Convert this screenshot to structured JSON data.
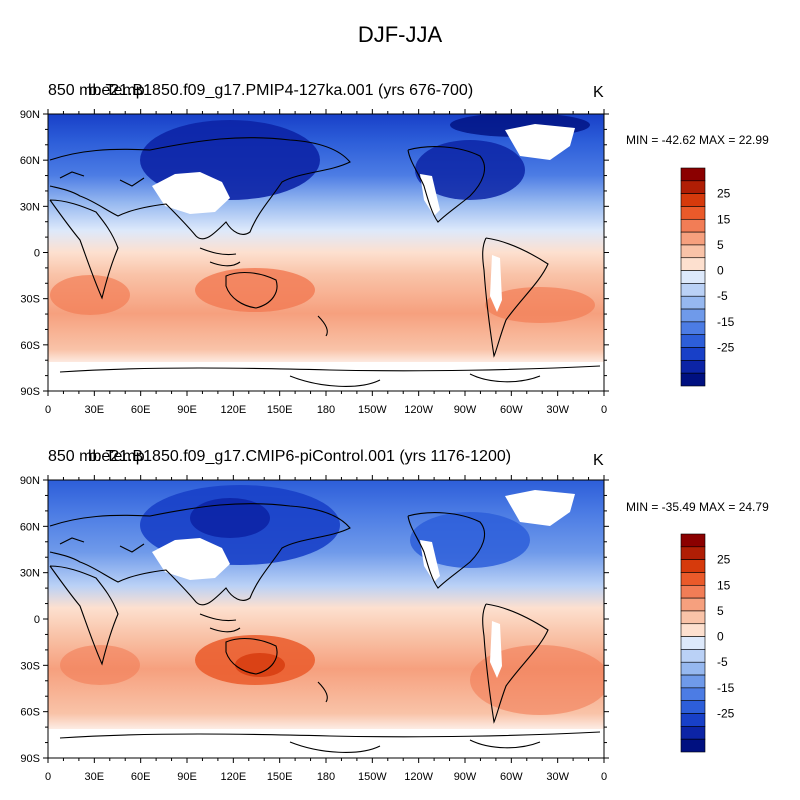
{
  "figure_title": "DJF-JJA",
  "panels": [
    {
      "variable": "850 mb Temp",
      "case": "b.e21.B1850.f09_g17.PMIP4-127ka.001 (yrs 676-700)",
      "units": "K",
      "minmax": "MIN = -42.62 MAX =  22.99",
      "min": -42.62,
      "max": 22.99
    },
    {
      "variable": "850 mb Temp",
      "case": "b.e21.B1850.f09_g17.CMIP6-piControl.001 (yrs 1176-1200)",
      "units": "K",
      "minmax": "MIN = -35.49 MAX =  24.79",
      "min": -35.49,
      "max": 24.79
    }
  ],
  "axes": {
    "lat_labels": [
      "90N",
      "60N",
      "30N",
      "0",
      "30S",
      "60S",
      "90S"
    ],
    "lon_labels": [
      "0",
      "30E",
      "60E",
      "90E",
      "120E",
      "150E",
      "180",
      "150W",
      "120W",
      "90W",
      "60W",
      "30W",
      "0"
    ]
  },
  "colorbar": {
    "labels": [
      "25",
      "15",
      "5",
      "0",
      "-5",
      "-15",
      "-25"
    ],
    "colors": [
      "#8b0000",
      "#b01e05",
      "#d63a0c",
      "#ea5a2a",
      "#f27d56",
      "#f6a07e",
      "#f9c3a8",
      "#fde0cf",
      "#dde9fb",
      "#bad1f6",
      "#96b8f0",
      "#6f9aea",
      "#4c7ce4",
      "#2d5ed9",
      "#1840c8",
      "#0c24a6",
      "#001080"
    ]
  }
}
